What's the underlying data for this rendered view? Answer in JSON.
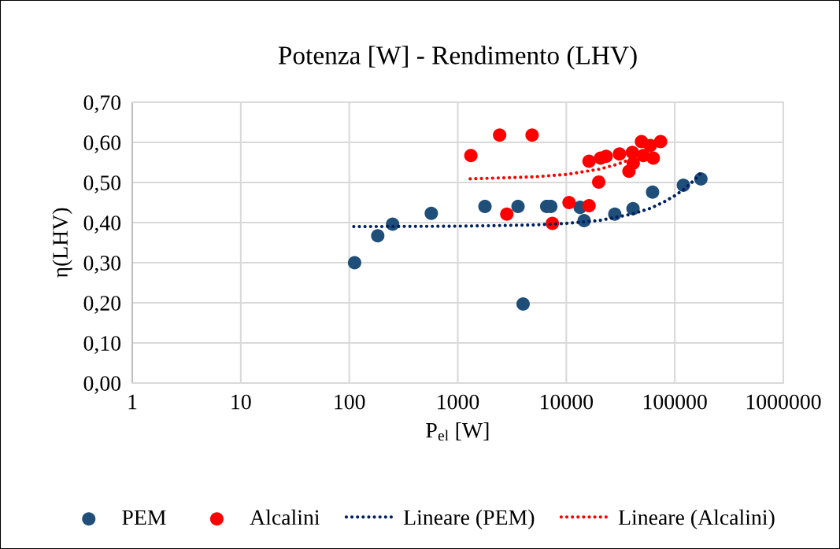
{
  "chart_data": {
    "type": "scatter",
    "title": "Potenza [W] - Rendimento (LHV)",
    "xlabel": "P$_{el}$ [W]",
    "ylabel": "η(LHV)",
    "log": "x",
    "grid": true,
    "legend": "bottom",
    "xlim": [
      1,
      1000000
    ],
    "xticks": [
      1,
      10,
      100,
      1000,
      10000,
      100000,
      1000000
    ],
    "ylim": [
      0,
      0.7
    ],
    "yticks": [
      {
        "value": 0,
        "label": "0,00"
      },
      {
        "value": 0.1,
        "label": "0,10"
      },
      {
        "value": 0.2,
        "label": "0,20"
      },
      {
        "value": 0.3,
        "label": "0,30"
      },
      {
        "value": 0.4,
        "label": "0,40"
      },
      {
        "value": 0.5,
        "label": "0,50"
      },
      {
        "value": 0.6,
        "label": "0,60"
      },
      {
        "value": 0.7,
        "label": "0,70"
      }
    ],
    "series": [
      {
        "name": "PEM",
        "marker": "circle",
        "color": "#1f4e79",
        "x": [
          112,
          183,
          251,
          570,
          1780,
          3590,
          4000,
          6600,
          7200,
          13400,
          14600,
          28000,
          41200,
          62400,
          120000,
          174000
        ],
        "values": [
          0.3,
          0.367,
          0.396,
          0.423,
          0.44,
          0.44,
          0.197,
          0.44,
          0.44,
          0.438,
          0.405,
          0.421,
          0.435,
          0.476,
          0.493,
          0.509
        ]
      },
      {
        "name": "Alcalini",
        "marker": "circle",
        "color": "#ff0000",
        "x": [
          1320,
          2430,
          4840,
          2830,
          7440,
          10600,
          16200,
          16200,
          19900,
          20700,
          23300,
          30900,
          37800,
          40600,
          41400,
          49300,
          51300,
          59500,
          63300,
          74000
        ],
        "values": [
          0.567,
          0.618,
          0.618,
          0.421,
          0.398,
          0.45,
          0.442,
          0.553,
          0.501,
          0.561,
          0.565,
          0.571,
          0.528,
          0.575,
          0.548,
          0.602,
          0.567,
          0.592,
          0.561,
          0.602
        ]
      },
      {
        "name": "Lineare (PEM)",
        "type": "line",
        "line_style": "dotted",
        "color": "#002060",
        "x": [
          110,
          1000,
          5000,
          10000,
          20000,
          40000,
          60000,
          80000,
          100000,
          120000,
          150000,
          175000
        ],
        "values": [
          0.39,
          0.391,
          0.394,
          0.398,
          0.405,
          0.421,
          0.436,
          0.452,
          0.467,
          0.482,
          0.505,
          0.525
        ]
      },
      {
        "name": "Lineare (Alcalini)",
        "type": "line",
        "line_style": "dotted",
        "color": "#ff0000",
        "x": [
          1300,
          5000,
          10000,
          20000,
          30000,
          40000
        ],
        "values": [
          0.509,
          0.514,
          0.52,
          0.533,
          0.546,
          0.559
        ]
      }
    ]
  }
}
